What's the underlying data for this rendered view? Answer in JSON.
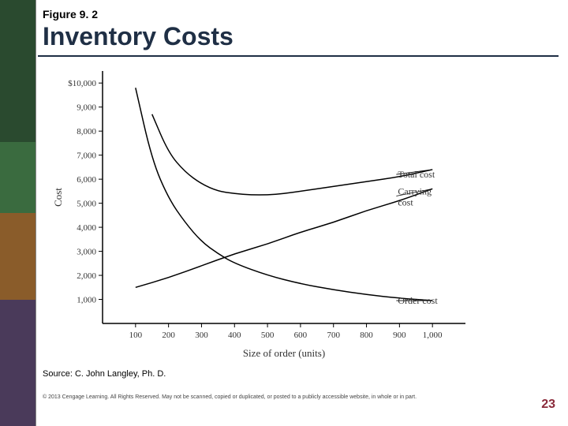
{
  "header": {
    "figure_label": "Figure 9. 2",
    "title": "Inventory Costs",
    "title_color": "#1f2f45",
    "rule_color": "#1f2f45"
  },
  "sidebar": {
    "segments": [
      {
        "color": "#2a4a2f"
      },
      {
        "color": "#3a6b3f"
      },
      {
        "color": "#8a5c2a"
      },
      {
        "color": "#4a3a5a"
      }
    ]
  },
  "chart": {
    "type": "line",
    "background_color": "#ffffff",
    "axis_color": "#000000",
    "line_color": "#000000",
    "line_width": 1.5,
    "xlabel": "Size of order (units)",
    "ylabel": "Cost",
    "label_fontsize": 13,
    "tick_fontsize": 11,
    "font_family": "Times New Roman",
    "xlim": [
      0,
      1100
    ],
    "ylim": [
      0,
      10500
    ],
    "x_ticks": [
      100,
      200,
      300,
      400,
      500,
      600,
      700,
      800,
      900,
      1000
    ],
    "x_tick_labels": [
      "100",
      "200",
      "300",
      "400",
      "500",
      "600",
      "700",
      "800",
      "900",
      "1,000"
    ],
    "y_ticks": [
      1000,
      2000,
      3000,
      4000,
      5000,
      6000,
      7000,
      8000,
      9000,
      10000
    ],
    "y_tick_labels": [
      "1,000",
      "2,000",
      "3,000",
      "4,000",
      "5,000",
      "6,000",
      "7,000",
      "8,000",
      "9,000",
      "$10,000"
    ],
    "series": [
      {
        "name": "Carrying cost",
        "label": "Carrying cost",
        "label_pos": {
          "x": 1010,
          "y": 5300
        },
        "points": [
          {
            "x": 100,
            "y": 1500
          },
          {
            "x": 200,
            "y": 1900
          },
          {
            "x": 300,
            "y": 2400
          },
          {
            "x": 400,
            "y": 2900
          },
          {
            "x": 500,
            "y": 3300
          },
          {
            "x": 600,
            "y": 3800
          },
          {
            "x": 700,
            "y": 4200
          },
          {
            "x": 800,
            "y": 4700
          },
          {
            "x": 900,
            "y": 5100
          },
          {
            "x": 1000,
            "y": 5600
          }
        ]
      },
      {
        "name": "Order cost",
        "label": "Order cost",
        "label_pos": {
          "x": 1010,
          "y": 950
        },
        "points": [
          {
            "x": 100,
            "y": 9800
          },
          {
            "x": 150,
            "y": 6800
          },
          {
            "x": 200,
            "y": 5200
          },
          {
            "x": 250,
            "y": 4200
          },
          {
            "x": 300,
            "y": 3400
          },
          {
            "x": 350,
            "y": 2900
          },
          {
            "x": 400,
            "y": 2500
          },
          {
            "x": 500,
            "y": 2000
          },
          {
            "x": 600,
            "y": 1650
          },
          {
            "x": 700,
            "y": 1400
          },
          {
            "x": 800,
            "y": 1200
          },
          {
            "x": 900,
            "y": 1050
          },
          {
            "x": 1000,
            "y": 950
          }
        ]
      },
      {
        "name": "Total cost",
        "label": "Total cost",
        "label_pos": {
          "x": 1010,
          "y": 6200
        },
        "points": [
          {
            "x": 150,
            "y": 8700
          },
          {
            "x": 200,
            "y": 7100
          },
          {
            "x": 250,
            "y": 6300
          },
          {
            "x": 300,
            "y": 5800
          },
          {
            "x": 350,
            "y": 5500
          },
          {
            "x": 400,
            "y": 5400
          },
          {
            "x": 450,
            "y": 5350
          },
          {
            "x": 500,
            "y": 5350
          },
          {
            "x": 550,
            "y": 5400
          },
          {
            "x": 600,
            "y": 5500
          },
          {
            "x": 700,
            "y": 5700
          },
          {
            "x": 800,
            "y": 5900
          },
          {
            "x": 900,
            "y": 6100
          },
          {
            "x": 1000,
            "y": 6400
          }
        ]
      }
    ]
  },
  "footer": {
    "source": "Source: C. John Langley, Ph. D.",
    "copyright": "© 2013 Cengage Learning. All Rights Reserved. May not be scanned, copied or duplicated, or posted to a publicly accessible website, in whole or in part.",
    "page_number": "23",
    "page_number_color": "#8a2a3a"
  }
}
